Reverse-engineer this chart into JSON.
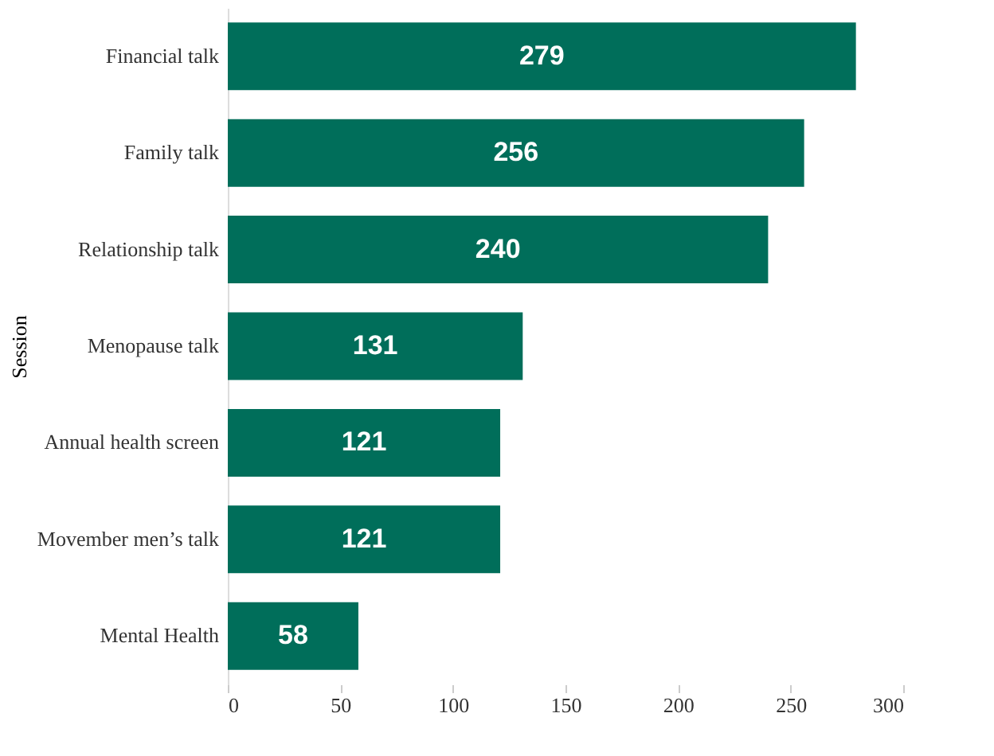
{
  "chart_data": {
    "type": "bar",
    "orientation": "horizontal",
    "ylabel": "Session",
    "categories": [
      "Financial talk",
      "Family talk",
      "Relationship talk",
      "Menopause talk",
      "Annual health screen",
      "Movember men’s talk",
      "Mental Health"
    ],
    "values": [
      279,
      256,
      240,
      131,
      121,
      121,
      58
    ],
    "color": "#006e5a",
    "xlim": [
      0,
      300
    ],
    "xticks": [
      0,
      50,
      100,
      150,
      200,
      250,
      300
    ],
    "data_labels": true
  }
}
